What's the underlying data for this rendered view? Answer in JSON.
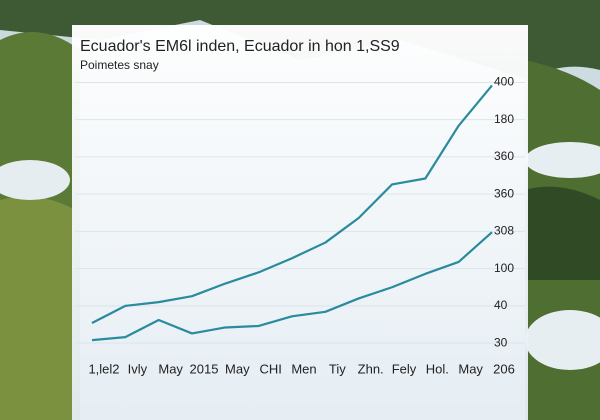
{
  "chart_data": {
    "type": "line",
    "title": "Ecuador's EM6l inden, Ecuador in hon 1,SS9",
    "subtitle": "Poimetes snay",
    "categories": [
      "1,lel2",
      "Ivly",
      "May",
      "2015",
      "May",
      "CHI",
      "Men",
      "Tiy",
      "Zhn.",
      "Fely",
      "Hol.",
      "May",
      "206"
    ],
    "series": [
      {
        "color": "#2a8a9e",
        "values": [
          77,
          100,
          105,
          113,
          130,
          145,
          164,
          185,
          218,
          263,
          271,
          342,
          396
        ]
      },
      {
        "color": "#2a8a9e",
        "values": [
          54,
          58,
          81,
          63,
          71,
          73,
          86,
          92,
          110,
          125,
          143,
          159,
          199
        ]
      }
    ],
    "ylim": [
      30,
      410
    ],
    "yticks": [
      400,
      {
        "value": 350,
        "label": "180"
      },
      {
        "value": 300,
        "label": "360"
      },
      {
        "value": 250,
        "label": "360"
      },
      {
        "value": 200,
        "label": "308"
      },
      {
        "value": 150,
        "label": "100"
      },
      {
        "value": 100,
        "label": "40"
      },
      {
        "value": 50,
        "label": "30"
      }
    ],
    "grid": true
  }
}
